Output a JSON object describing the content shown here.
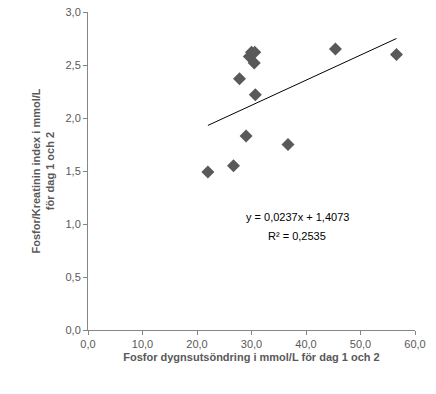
{
  "chart_data": {
    "type": "scatter",
    "xlabel": "Fosfor dygnsutsöndring i mmol/L för dag 1 och 2",
    "ylabel": [
      "Fosfor/Kreatinin index i mmol/L",
      "för dag 1 och 2"
    ],
    "xlim": [
      0,
      60
    ],
    "ylim": [
      0,
      3
    ],
    "xticks": [
      {
        "value": 0,
        "label": "0,0"
      },
      {
        "value": 10,
        "label": "10,0"
      },
      {
        "value": 20,
        "label": "20,0"
      },
      {
        "value": 30,
        "label": "30,0"
      },
      {
        "value": 40,
        "label": "40,0"
      },
      {
        "value": 50,
        "label": "50,0"
      },
      {
        "value": 60,
        "label": "60,0"
      }
    ],
    "yticks": [
      {
        "value": 0,
        "label": "0,0"
      },
      {
        "value": 0.5,
        "label": "0,5"
      },
      {
        "value": 1,
        "label": "1,0"
      },
      {
        "value": 1.5,
        "label": "1,5"
      },
      {
        "value": 2,
        "label": "2,0"
      },
      {
        "value": 2.5,
        "label": "2,5"
      },
      {
        "value": 3,
        "label": "3,0"
      }
    ],
    "grid": false,
    "series": [
      {
        "type": "scatter",
        "color": "#595959",
        "marker": "diamond",
        "x": [
          22.0,
          26.7,
          27.8,
          29.0,
          29.6,
          30.0,
          30.5,
          30.6,
          30.7,
          36.7,
          45.4,
          56.6
        ],
        "values": [
          1.49,
          1.55,
          2.37,
          1.83,
          2.58,
          2.62,
          2.52,
          2.62,
          2.22,
          1.75,
          2.65,
          2.6
        ]
      },
      {
        "type": "line",
        "color": "#000000",
        "line_style": "solid",
        "x": [
          22.0,
          56.6
        ],
        "values": [
          1.93,
          2.75
        ]
      }
    ],
    "annotations": [
      "y = 0,0237x + 1,4073",
      "R² = 0,2535"
    ]
  }
}
